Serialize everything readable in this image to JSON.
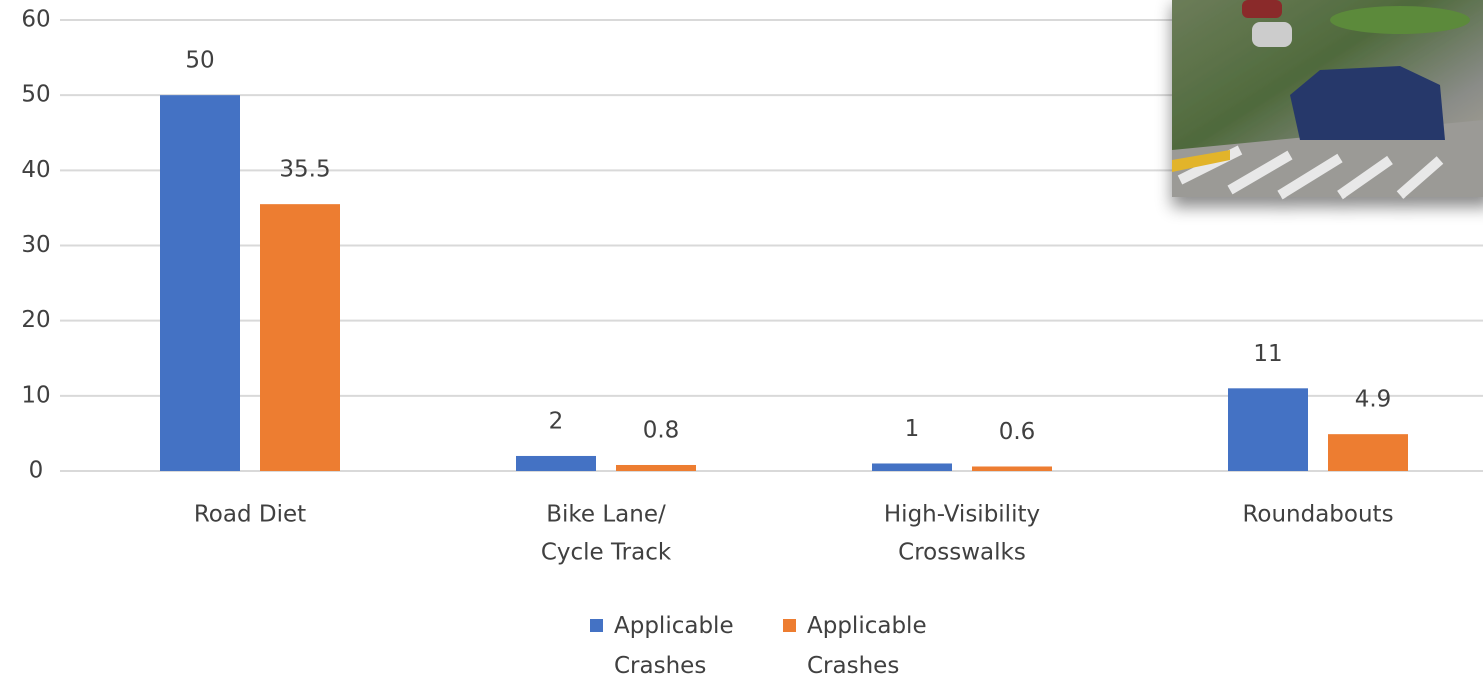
{
  "chart_data": {
    "type": "bar",
    "categories": [
      [
        "Road Diet"
      ],
      [
        "Bike Lane/",
        "Cycle Track"
      ],
      [
        "High-Visibility",
        "Crosswalks"
      ],
      [
        "Roundabouts"
      ]
    ],
    "series": [
      {
        "name": "Applicable Crashes",
        "color": "#4472c4",
        "values": [
          50,
          2,
          1,
          11
        ]
      },
      {
        "name": "Applicable Crashes",
        "color": "#ed7d31",
        "values": [
          35.5,
          0.8,
          0.6,
          4.9
        ]
      }
    ],
    "ylim": [
      0,
      60
    ],
    "yticks": [
      0,
      10,
      20,
      30,
      40,
      50,
      60
    ],
    "grid": true
  }
}
